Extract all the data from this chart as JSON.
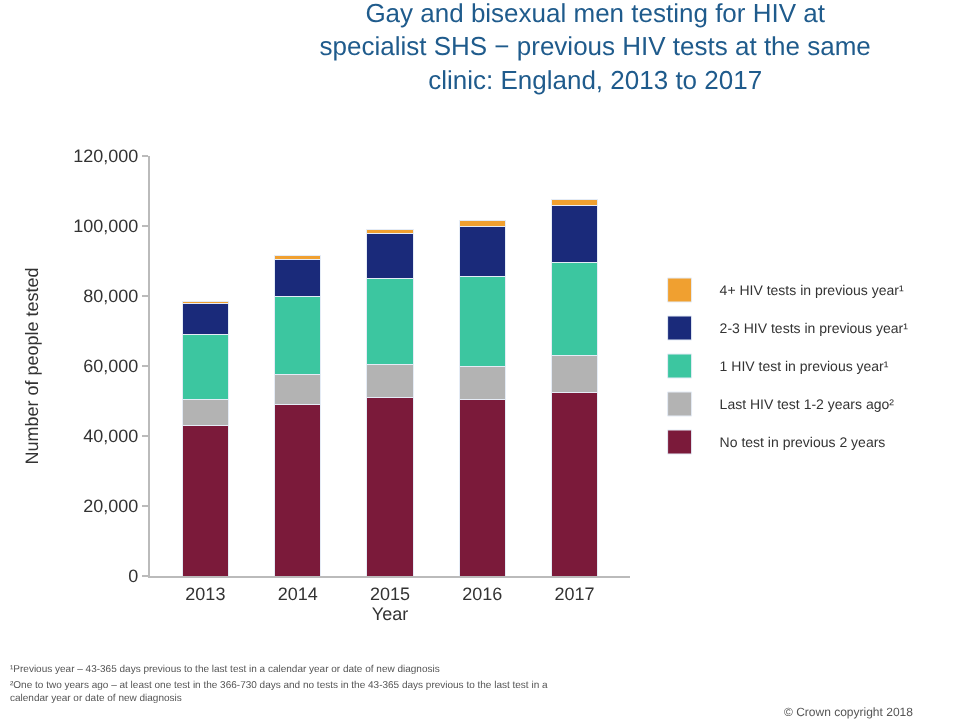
{
  "chart_data": {
    "type": "bar",
    "stacked": true,
    "title": "Gay and bisexual men testing for HIV at specialist SHS − previous HIV tests at the same clinic: England, 2013 to 2017",
    "xlabel": "Year",
    "ylabel": "Number of people tested",
    "categories": [
      "2013",
      "2014",
      "2015",
      "2016",
      "2017"
    ],
    "series": [
      {
        "name": "No test in previous 2 years",
        "color": "#7b1a3a",
        "values": [
          43000,
          49000,
          51000,
          50500,
          52500
        ]
      },
      {
        "name": "Last HIV test 1-2 years ago²",
        "color": "#b3b3b3",
        "values": [
          7500,
          8500,
          9500,
          9500,
          10500
        ]
      },
      {
        "name": "1 HIV test in previous year¹",
        "color": "#3cc6a0",
        "values": [
          18500,
          22500,
          24500,
          25500,
          26500
        ]
      },
      {
        "name": "2-3 HIV tests in previous year¹",
        "color": "#1a2a7a",
        "values": [
          9000,
          10500,
          13000,
          14500,
          16500
        ]
      },
      {
        "name": "4+ HIV tests in previous year¹",
        "color": "#f0a030",
        "values": [
          500,
          1000,
          1000,
          1500,
          1500
        ]
      }
    ],
    "ylim": [
      0,
      120000
    ],
    "yticks": [
      {
        "value": 0,
        "label": "0"
      },
      {
        "value": 20000,
        "label": "20,000"
      },
      {
        "value": 40000,
        "label": "40,000"
      },
      {
        "value": 60000,
        "label": "60,000"
      },
      {
        "value": 80000,
        "label": "80,000"
      },
      {
        "value": 100000,
        "label": "100,000"
      },
      {
        "value": 120000,
        "label": "120,000"
      }
    ],
    "legend": "right",
    "annotations": [
      "¹Previous year – 43-365 days previous to the last test in a calendar year or date of new diagnosis",
      "²One to two years ago – at least one test in the 366-730 days and no tests in the 43-365 days previous to the last test in a calendar year or date of new diagnosis",
      "© Crown copyright 2018"
    ]
  }
}
